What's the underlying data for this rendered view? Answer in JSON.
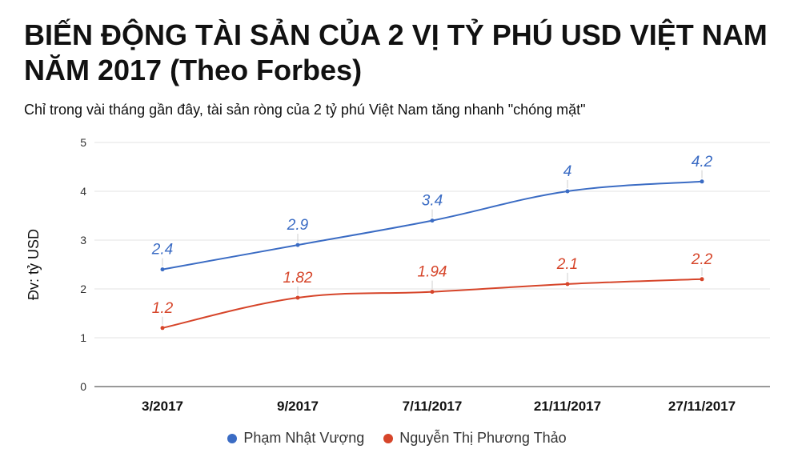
{
  "title": "BIẾN ĐỘNG TÀI SẢN CỦA 2 VỊ TỶ PHÚ USD VIỆT NAM NĂM 2017 (Theo Forbes)",
  "subtitle": "Chỉ trong vài tháng gần đây, tài sản ròng của 2 tỷ phú Việt Nam tăng nhanh \"chóng mặt\"",
  "chart_data": {
    "type": "line",
    "title": "BIẾN ĐỘNG TÀI SẢN CỦA 2 VỊ TỶ PHÚ USD VIỆT NAM NĂM 2017 (Theo Forbes)",
    "subtitle": "Chỉ trong vài tháng gần đây, tài sản ròng của 2 tỷ phú Việt Nam tăng nhanh \"chóng mặt\"",
    "xlabel": "",
    "ylabel": "Đv: tỷ USD",
    "categories": [
      "3/2017",
      "9/2017",
      "7/11/2017",
      "21/11/2017",
      "27/11/2017"
    ],
    "ylim": [
      0,
      5
    ],
    "yticks": [
      0,
      1,
      2,
      3,
      4,
      5
    ],
    "grid": true,
    "legend_position": "bottom",
    "series": [
      {
        "name": "Phạm Nhật Vượng",
        "color": "#3b6cc4",
        "values": [
          2.4,
          2.9,
          3.4,
          4,
          4.2
        ],
        "labels": [
          "2.4",
          "2.9",
          "3.4",
          "4",
          "4.2"
        ]
      },
      {
        "name": "Nguyễn Thị Phương Thảo",
        "color": "#d6452a",
        "values": [
          1.2,
          1.82,
          1.94,
          2.1,
          2.2
        ],
        "labels": [
          "1.2",
          "1.82",
          "1.94",
          "2.1",
          "2.2"
        ]
      }
    ]
  }
}
